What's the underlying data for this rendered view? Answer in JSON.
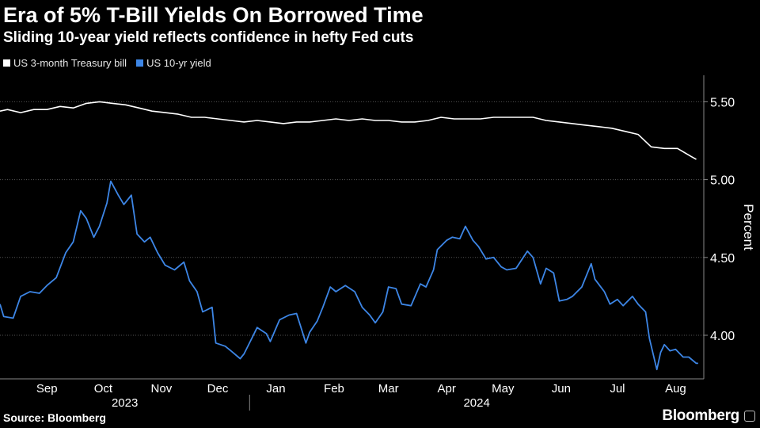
{
  "header": {
    "title": "Era of 5% T-Bill Yields On Borrowed Time",
    "subtitle": "Sliding 10-year yield reflects confidence in hefty Fed cuts"
  },
  "footer": {
    "source": "Source: Bloomberg",
    "logo": "Bloomberg"
  },
  "colors": {
    "background": "#000000",
    "tbill": "#ffffff",
    "ten_year": "#3d86e6",
    "grid": "#555555"
  },
  "chart_data": {
    "type": "line",
    "ylabel": "Percent",
    "y_axis_position": "right",
    "ylim": [
      3.72,
      5.67
    ],
    "yticks": [
      4.0,
      4.5,
      5.0,
      5.5
    ],
    "ytick_labels": [
      "4.00",
      "4.50",
      "5.00",
      "5.50"
    ],
    "grid": "horizontal dotted",
    "legend": "top-left",
    "xlim": [
      "2023-08-21",
      "2024-08-30"
    ],
    "xticks": [
      {
        "date": "2023-09-15",
        "label": "Sep"
      },
      {
        "date": "2023-10-15",
        "label": "Oct"
      },
      {
        "date": "2023-11-15",
        "label": "Nov"
      },
      {
        "date": "2023-12-15",
        "label": "Dec"
      },
      {
        "date": "2024-01-15",
        "label": "Jan"
      },
      {
        "date": "2024-02-15",
        "label": "Feb"
      },
      {
        "date": "2024-03-15",
        "label": "Mar"
      },
      {
        "date": "2024-04-15",
        "label": "Apr"
      },
      {
        "date": "2024-05-15",
        "label": "May"
      },
      {
        "date": "2024-06-15",
        "label": "Jun"
      },
      {
        "date": "2024-07-15",
        "label": "Jul"
      },
      {
        "date": "2024-08-15",
        "label": "Aug"
      }
    ],
    "year_labels": [
      {
        "label": "2023",
        "from": "2023-08-21",
        "to": "2024-01-01"
      },
      {
        "label": "2024",
        "from": "2024-01-01",
        "to": "2024-08-30"
      }
    ],
    "series": [
      {
        "name": "US 3-month Treasury bill",
        "color": "#ffffff",
        "points": [
          [
            "2023-08-21",
            5.44
          ],
          [
            "2023-08-25",
            5.45
          ],
          [
            "2023-09-01",
            5.43
          ],
          [
            "2023-09-08",
            5.45
          ],
          [
            "2023-09-15",
            5.45
          ],
          [
            "2023-09-22",
            5.47
          ],
          [
            "2023-09-29",
            5.46
          ],
          [
            "2023-10-06",
            5.49
          ],
          [
            "2023-10-13",
            5.5
          ],
          [
            "2023-10-20",
            5.49
          ],
          [
            "2023-10-27",
            5.48
          ],
          [
            "2023-11-03",
            5.46
          ],
          [
            "2023-11-10",
            5.44
          ],
          [
            "2023-11-17",
            5.43
          ],
          [
            "2023-11-24",
            5.42
          ],
          [
            "2023-12-01",
            5.4
          ],
          [
            "2023-12-08",
            5.4
          ],
          [
            "2023-12-15",
            5.39
          ],
          [
            "2023-12-22",
            5.38
          ],
          [
            "2023-12-29",
            5.37
          ],
          [
            "2024-01-05",
            5.38
          ],
          [
            "2024-01-12",
            5.37
          ],
          [
            "2024-01-19",
            5.36
          ],
          [
            "2024-01-26",
            5.37
          ],
          [
            "2024-02-02",
            5.37
          ],
          [
            "2024-02-09",
            5.38
          ],
          [
            "2024-02-16",
            5.39
          ],
          [
            "2024-02-23",
            5.38
          ],
          [
            "2024-03-01",
            5.39
          ],
          [
            "2024-03-08",
            5.38
          ],
          [
            "2024-03-15",
            5.38
          ],
          [
            "2024-03-22",
            5.37
          ],
          [
            "2024-03-29",
            5.37
          ],
          [
            "2024-04-05",
            5.38
          ],
          [
            "2024-04-12",
            5.4
          ],
          [
            "2024-04-19",
            5.39
          ],
          [
            "2024-04-26",
            5.39
          ],
          [
            "2024-05-03",
            5.39
          ],
          [
            "2024-05-10",
            5.4
          ],
          [
            "2024-05-17",
            5.4
          ],
          [
            "2024-05-24",
            5.4
          ],
          [
            "2024-05-31",
            5.4
          ],
          [
            "2024-06-07",
            5.38
          ],
          [
            "2024-06-14",
            5.37
          ],
          [
            "2024-06-21",
            5.36
          ],
          [
            "2024-06-28",
            5.35
          ],
          [
            "2024-07-05",
            5.34
          ],
          [
            "2024-07-12",
            5.33
          ],
          [
            "2024-07-19",
            5.31
          ],
          [
            "2024-07-26",
            5.29
          ],
          [
            "2024-08-02",
            5.21
          ],
          [
            "2024-08-09",
            5.2
          ],
          [
            "2024-08-16",
            5.2
          ],
          [
            "2024-08-23",
            5.15
          ],
          [
            "2024-08-26",
            5.13
          ]
        ]
      },
      {
        "name": "US 10-yr yield",
        "color": "#3d86e6",
        "points": [
          [
            "2023-08-21",
            4.2
          ],
          [
            "2023-08-23",
            4.12
          ],
          [
            "2023-08-28",
            4.11
          ],
          [
            "2023-09-01",
            4.25
          ],
          [
            "2023-09-06",
            4.28
          ],
          [
            "2023-09-11",
            4.27
          ],
          [
            "2023-09-15",
            4.32
          ],
          [
            "2023-09-20",
            4.37
          ],
          [
            "2023-09-25",
            4.53
          ],
          [
            "2023-09-29",
            4.6
          ],
          [
            "2023-10-03",
            4.8
          ],
          [
            "2023-10-06",
            4.75
          ],
          [
            "2023-10-10",
            4.63
          ],
          [
            "2023-10-13",
            4.7
          ],
          [
            "2023-10-17",
            4.85
          ],
          [
            "2023-10-19",
            4.99
          ],
          [
            "2023-10-23",
            4.9
          ],
          [
            "2023-10-26",
            4.84
          ],
          [
            "2023-10-30",
            4.9
          ],
          [
            "2023-11-02",
            4.65
          ],
          [
            "2023-11-06",
            4.6
          ],
          [
            "2023-11-09",
            4.63
          ],
          [
            "2023-11-13",
            4.53
          ],
          [
            "2023-11-17",
            4.45
          ],
          [
            "2023-11-22",
            4.42
          ],
          [
            "2023-11-27",
            4.47
          ],
          [
            "2023-11-30",
            4.35
          ],
          [
            "2023-12-04",
            4.28
          ],
          [
            "2023-12-07",
            4.15
          ],
          [
            "2023-12-12",
            4.18
          ],
          [
            "2023-12-14",
            3.95
          ],
          [
            "2023-12-19",
            3.93
          ],
          [
            "2023-12-22",
            3.9
          ],
          [
            "2023-12-27",
            3.85
          ],
          [
            "2023-12-29",
            3.88
          ],
          [
            "2024-01-03",
            4.0
          ],
          [
            "2024-01-05",
            4.05
          ],
          [
            "2024-01-10",
            4.01
          ],
          [
            "2024-01-12",
            3.96
          ],
          [
            "2024-01-17",
            4.1
          ],
          [
            "2024-01-22",
            4.13
          ],
          [
            "2024-01-26",
            4.14
          ],
          [
            "2024-01-31",
            3.95
          ],
          [
            "2024-02-02",
            4.02
          ],
          [
            "2024-02-06",
            4.09
          ],
          [
            "2024-02-09",
            4.18
          ],
          [
            "2024-02-13",
            4.31
          ],
          [
            "2024-02-16",
            4.28
          ],
          [
            "2024-02-21",
            4.32
          ],
          [
            "2024-02-26",
            4.28
          ],
          [
            "2024-03-01",
            4.18
          ],
          [
            "2024-03-05",
            4.13
          ],
          [
            "2024-03-08",
            4.08
          ],
          [
            "2024-03-12",
            4.15
          ],
          [
            "2024-03-15",
            4.31
          ],
          [
            "2024-03-19",
            4.3
          ],
          [
            "2024-03-22",
            4.2
          ],
          [
            "2024-03-27",
            4.19
          ],
          [
            "2024-04-01",
            4.33
          ],
          [
            "2024-04-04",
            4.31
          ],
          [
            "2024-04-08",
            4.42
          ],
          [
            "2024-04-10",
            4.55
          ],
          [
            "2024-04-15",
            4.61
          ],
          [
            "2024-04-18",
            4.63
          ],
          [
            "2024-04-22",
            4.62
          ],
          [
            "2024-04-25",
            4.7
          ],
          [
            "2024-04-29",
            4.61
          ],
          [
            "2024-05-02",
            4.57
          ],
          [
            "2024-05-06",
            4.49
          ],
          [
            "2024-05-10",
            4.5
          ],
          [
            "2024-05-14",
            4.44
          ],
          [
            "2024-05-17",
            4.42
          ],
          [
            "2024-05-22",
            4.43
          ],
          [
            "2024-05-28",
            4.54
          ],
          [
            "2024-05-31",
            4.5
          ],
          [
            "2024-06-04",
            4.33
          ],
          [
            "2024-06-07",
            4.43
          ],
          [
            "2024-06-11",
            4.4
          ],
          [
            "2024-06-14",
            4.22
          ],
          [
            "2024-06-18",
            4.23
          ],
          [
            "2024-06-21",
            4.25
          ],
          [
            "2024-06-26",
            4.31
          ],
          [
            "2024-07-01",
            4.46
          ],
          [
            "2024-07-03",
            4.36
          ],
          [
            "2024-07-08",
            4.28
          ],
          [
            "2024-07-11",
            4.2
          ],
          [
            "2024-07-15",
            4.23
          ],
          [
            "2024-07-18",
            4.19
          ],
          [
            "2024-07-23",
            4.25
          ],
          [
            "2024-07-26",
            4.2
          ],
          [
            "2024-07-30",
            4.15
          ],
          [
            "2024-08-01",
            3.98
          ],
          [
            "2024-08-05",
            3.78
          ],
          [
            "2024-08-07",
            3.89
          ],
          [
            "2024-08-09",
            3.94
          ],
          [
            "2024-08-12",
            3.9
          ],
          [
            "2024-08-15",
            3.91
          ],
          [
            "2024-08-19",
            3.86
          ],
          [
            "2024-08-22",
            3.86
          ],
          [
            "2024-08-26",
            3.82
          ],
          [
            "2024-08-27",
            3.82
          ]
        ]
      }
    ]
  }
}
